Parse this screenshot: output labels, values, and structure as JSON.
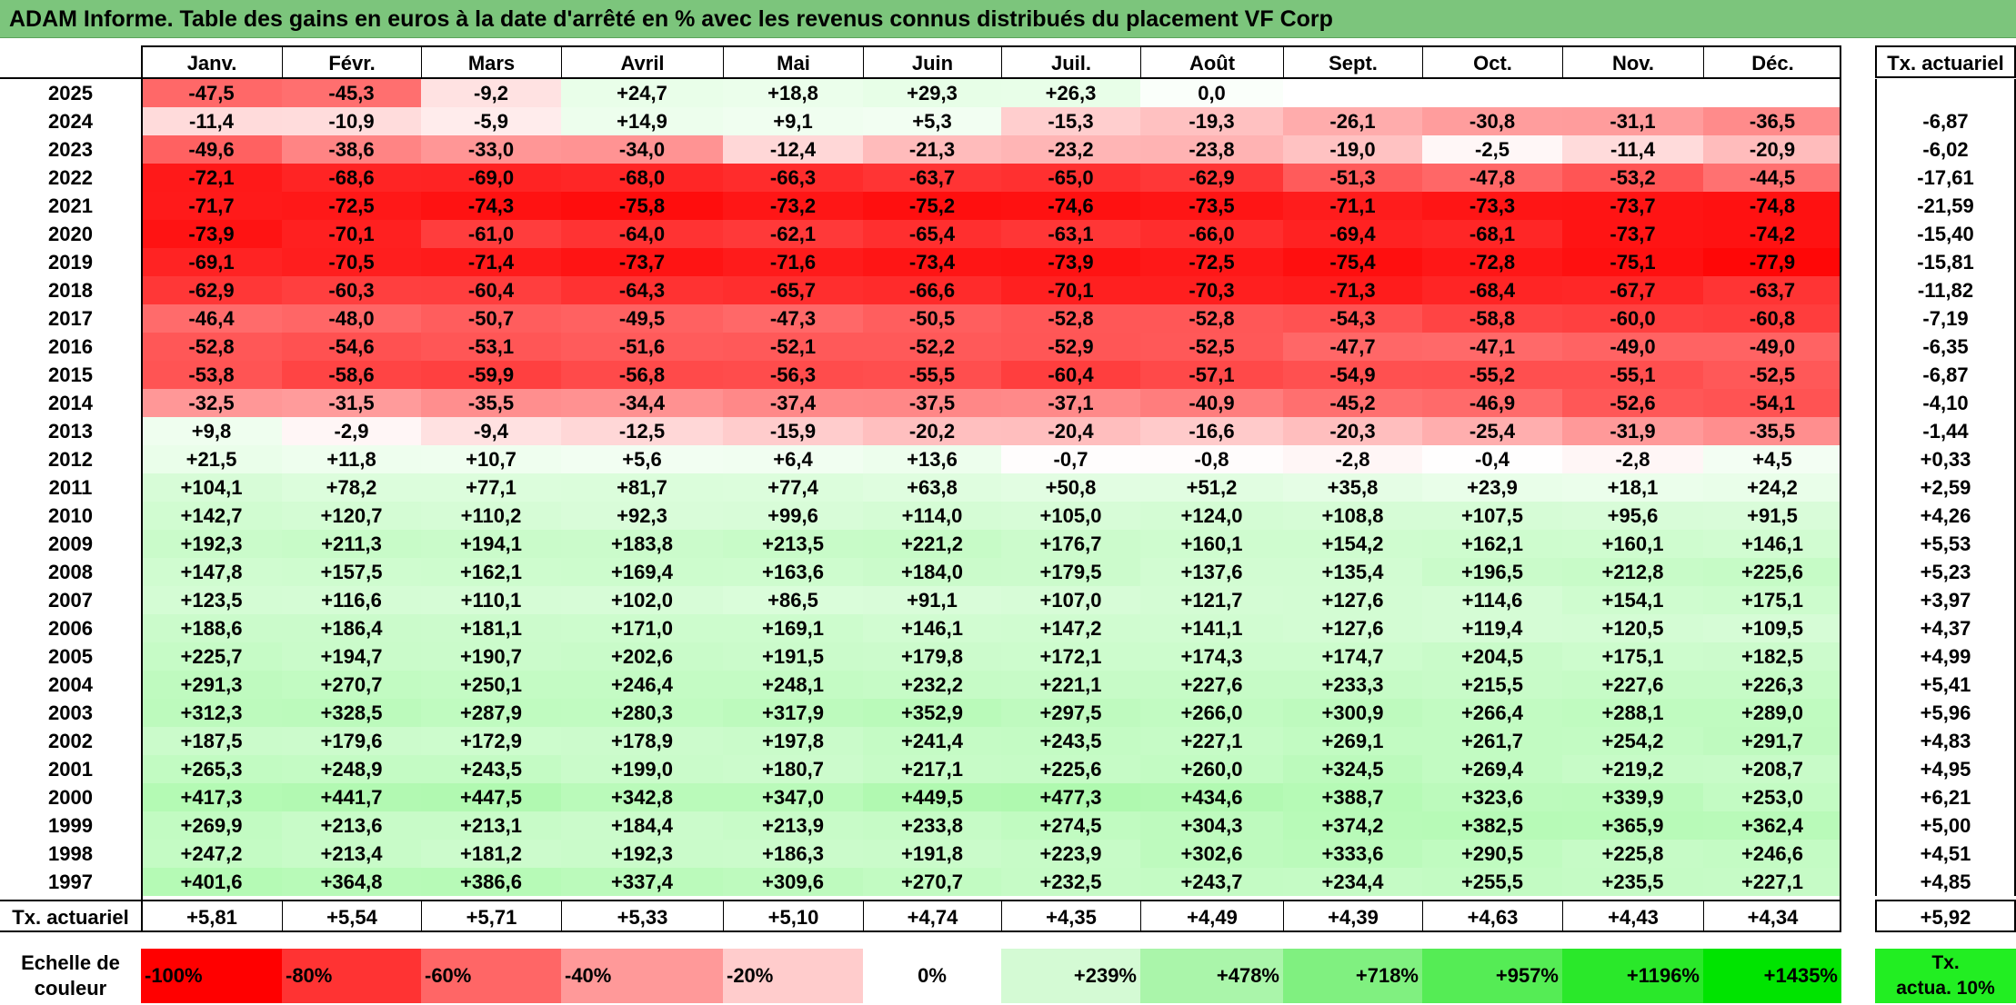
{
  "title": "ADAM Informe. Table des gains en euros à la date d'arrêté en % avec les revenus connus distribués du placement VF Corp",
  "headers": {
    "months": [
      "Janv.",
      "Févr.",
      "Mars",
      "Avril",
      "Mai",
      "Juin",
      "Juil.",
      "Août",
      "Sept.",
      "Oct.",
      "Nov.",
      "Déc."
    ],
    "tx_actuariel": "Tx. actuariel"
  },
  "rows": [
    {
      "year": "2025",
      "values": [
        "-47,5",
        "-45,3",
        "-9,2",
        "+24,7",
        "+18,8",
        "+29,3",
        "+26,3",
        "0,0",
        "",
        "",
        "",
        ""
      ],
      "tx": ""
    },
    {
      "year": "2024",
      "values": [
        "-11,4",
        "-10,9",
        "-5,9",
        "+14,9",
        "+9,1",
        "+5,3",
        "-15,3",
        "-19,3",
        "-26,1",
        "-30,8",
        "-31,1",
        "-36,5"
      ],
      "tx": "-6,87"
    },
    {
      "year": "2023",
      "values": [
        "-49,6",
        "-38,6",
        "-33,0",
        "-34,0",
        "-12,4",
        "-21,3",
        "-23,2",
        "-23,8",
        "-19,0",
        "-2,5",
        "-11,4",
        "-20,9"
      ],
      "tx": "-6,02"
    },
    {
      "year": "2022",
      "values": [
        "-72,1",
        "-68,6",
        "-69,0",
        "-68,0",
        "-66,3",
        "-63,7",
        "-65,0",
        "-62,9",
        "-51,3",
        "-47,8",
        "-53,2",
        "-44,5"
      ],
      "tx": "-17,61"
    },
    {
      "year": "2021",
      "values": [
        "-71,7",
        "-72,5",
        "-74,3",
        "-75,8",
        "-73,2",
        "-75,2",
        "-74,6",
        "-73,5",
        "-71,1",
        "-73,3",
        "-73,7",
        "-74,8"
      ],
      "tx": "-21,59"
    },
    {
      "year": "2020",
      "values": [
        "-73,9",
        "-70,1",
        "-61,0",
        "-64,0",
        "-62,1",
        "-65,4",
        "-63,1",
        "-66,0",
        "-69,4",
        "-68,1",
        "-73,7",
        "-74,2"
      ],
      "tx": "-15,40"
    },
    {
      "year": "2019",
      "values": [
        "-69,1",
        "-70,5",
        "-71,4",
        "-73,7",
        "-71,6",
        "-73,4",
        "-73,9",
        "-72,5",
        "-75,4",
        "-72,8",
        "-75,1",
        "-77,9"
      ],
      "tx": "-15,81"
    },
    {
      "year": "2018",
      "values": [
        "-62,9",
        "-60,3",
        "-60,4",
        "-64,3",
        "-65,7",
        "-66,6",
        "-70,1",
        "-70,3",
        "-71,3",
        "-68,4",
        "-67,7",
        "-63,7"
      ],
      "tx": "-11,82"
    },
    {
      "year": "2017",
      "values": [
        "-46,4",
        "-48,0",
        "-50,7",
        "-49,5",
        "-47,3",
        "-50,5",
        "-52,8",
        "-52,8",
        "-54,3",
        "-58,8",
        "-60,0",
        "-60,8"
      ],
      "tx": "-7,19"
    },
    {
      "year": "2016",
      "values": [
        "-52,8",
        "-54,6",
        "-53,1",
        "-51,6",
        "-52,1",
        "-52,2",
        "-52,9",
        "-52,5",
        "-47,7",
        "-47,1",
        "-49,0",
        "-49,0"
      ],
      "tx": "-6,35"
    },
    {
      "year": "2015",
      "values": [
        "-53,8",
        "-58,6",
        "-59,9",
        "-56,8",
        "-56,3",
        "-55,5",
        "-60,4",
        "-57,1",
        "-54,9",
        "-55,2",
        "-55,1",
        "-52,5"
      ],
      "tx": "-6,87"
    },
    {
      "year": "2014",
      "values": [
        "-32,5",
        "-31,5",
        "-35,5",
        "-34,4",
        "-37,4",
        "-37,5",
        "-37,1",
        "-40,9",
        "-45,2",
        "-46,9",
        "-52,6",
        "-54,1"
      ],
      "tx": "-4,10"
    },
    {
      "year": "2013",
      "values": [
        "+9,8",
        "-2,9",
        "-9,4",
        "-12,5",
        "-15,9",
        "-20,2",
        "-20,4",
        "-16,6",
        "-20,3",
        "-25,4",
        "-31,9",
        "-35,5"
      ],
      "tx": "-1,44"
    },
    {
      "year": "2012",
      "values": [
        "+21,5",
        "+11,8",
        "+10,7",
        "+5,6",
        "+6,4",
        "+13,6",
        "-0,7",
        "-0,8",
        "-2,8",
        "-0,4",
        "-2,8",
        "+4,5"
      ],
      "tx": "+0,33"
    },
    {
      "year": "2011",
      "values": [
        "+104,1",
        "+78,2",
        "+77,1",
        "+81,7",
        "+77,4",
        "+63,8",
        "+50,8",
        "+51,2",
        "+35,8",
        "+23,9",
        "+18,1",
        "+24,2"
      ],
      "tx": "+2,59"
    },
    {
      "year": "2010",
      "values": [
        "+142,7",
        "+120,7",
        "+110,2",
        "+92,3",
        "+99,6",
        "+114,0",
        "+105,0",
        "+124,0",
        "+108,8",
        "+107,5",
        "+95,6",
        "+91,5"
      ],
      "tx": "+4,26"
    },
    {
      "year": "2009",
      "values": [
        "+192,3",
        "+211,3",
        "+194,1",
        "+183,8",
        "+213,5",
        "+221,2",
        "+176,7",
        "+160,1",
        "+154,2",
        "+162,1",
        "+160,1",
        "+146,1"
      ],
      "tx": "+5,53"
    },
    {
      "year": "2008",
      "values": [
        "+147,8",
        "+157,5",
        "+162,1",
        "+169,4",
        "+163,6",
        "+184,0",
        "+179,5",
        "+137,6",
        "+135,4",
        "+196,5",
        "+212,8",
        "+225,6"
      ],
      "tx": "+5,23"
    },
    {
      "year": "2007",
      "values": [
        "+123,5",
        "+116,6",
        "+110,1",
        "+102,0",
        "+86,5",
        "+91,1",
        "+107,0",
        "+121,7",
        "+127,6",
        "+114,6",
        "+154,1",
        "+175,1"
      ],
      "tx": "+3,97"
    },
    {
      "year": "2006",
      "values": [
        "+188,6",
        "+186,4",
        "+181,1",
        "+171,0",
        "+169,1",
        "+146,1",
        "+147,2",
        "+141,1",
        "+127,6",
        "+119,4",
        "+120,5",
        "+109,5"
      ],
      "tx": "+4,37"
    },
    {
      "year": "2005",
      "values": [
        "+225,7",
        "+194,7",
        "+190,7",
        "+202,6",
        "+191,5",
        "+179,8",
        "+172,1",
        "+174,3",
        "+174,7",
        "+204,5",
        "+175,1",
        "+182,5"
      ],
      "tx": "+4,99"
    },
    {
      "year": "2004",
      "values": [
        "+291,3",
        "+270,7",
        "+250,1",
        "+246,4",
        "+248,1",
        "+232,2",
        "+221,1",
        "+227,6",
        "+233,3",
        "+215,5",
        "+227,6",
        "+226,3"
      ],
      "tx": "+5,41"
    },
    {
      "year": "2003",
      "values": [
        "+312,3",
        "+328,5",
        "+287,9",
        "+280,3",
        "+317,9",
        "+352,9",
        "+297,5",
        "+266,0",
        "+300,9",
        "+266,4",
        "+288,1",
        "+289,0"
      ],
      "tx": "+5,96"
    },
    {
      "year": "2002",
      "values": [
        "+187,5",
        "+179,6",
        "+172,9",
        "+178,9",
        "+197,8",
        "+241,4",
        "+243,5",
        "+227,1",
        "+269,1",
        "+261,7",
        "+254,2",
        "+291,7"
      ],
      "tx": "+4,83"
    },
    {
      "year": "2001",
      "values": [
        "+265,3",
        "+248,9",
        "+243,5",
        "+199,0",
        "+180,7",
        "+217,1",
        "+225,6",
        "+260,0",
        "+324,5",
        "+269,4",
        "+219,2",
        "+208,7"
      ],
      "tx": "+4,95"
    },
    {
      "year": "2000",
      "values": [
        "+417,3",
        "+441,7",
        "+447,5",
        "+342,8",
        "+347,0",
        "+449,5",
        "+477,3",
        "+434,6",
        "+388,7",
        "+323,6",
        "+339,9",
        "+253,0"
      ],
      "tx": "+6,21"
    },
    {
      "year": "1999",
      "values": [
        "+269,9",
        "+213,6",
        "+213,1",
        "+184,4",
        "+213,9",
        "+233,8",
        "+274,5",
        "+304,3",
        "+374,2",
        "+382,5",
        "+365,9",
        "+362,4"
      ],
      "tx": "+5,00"
    },
    {
      "year": "1998",
      "values": [
        "+247,2",
        "+213,4",
        "+181,2",
        "+192,3",
        "+186,3",
        "+191,8",
        "+223,9",
        "+302,6",
        "+333,6",
        "+290,5",
        "+225,8",
        "+246,6"
      ],
      "tx": "+4,51"
    },
    {
      "year": "1997",
      "values": [
        "+401,6",
        "+364,8",
        "+386,6",
        "+337,4",
        "+309,6",
        "+270,7",
        "+232,5",
        "+243,7",
        "+234,4",
        "+255,5",
        "+235,5",
        "+227,1"
      ],
      "tx": "+4,85"
    }
  ],
  "footer": {
    "label": "Tx. actuariel",
    "values": [
      "+5,81",
      "+5,54",
      "+5,71",
      "+5,33",
      "+5,10",
      "+4,74",
      "+4,35",
      "+4,49",
      "+4,39",
      "+4,63",
      "+4,43",
      "+4,34"
    ],
    "tx": "+5,92"
  },
  "legend": {
    "label_line1": "Echelle de",
    "label_line2": "couleur",
    "items": [
      {
        "text": "-100%",
        "color": "#ff0000"
      },
      {
        "text": "-80%",
        "color": "#ff3333"
      },
      {
        "text": "-60%",
        "color": "#ff6666"
      },
      {
        "text": "-40%",
        "color": "#ff9999"
      },
      {
        "text": "-20%",
        "color": "#ffcccc"
      },
      {
        "text": "0%",
        "color": "#ffffff"
      },
      {
        "text": "+239%",
        "color": "#d4fad4"
      },
      {
        "text": "+478%",
        "color": "#aaf5aa"
      },
      {
        "text": "+718%",
        "color": "#80f080"
      },
      {
        "text": "+957%",
        "color": "#55ec55"
      },
      {
        "text": "+1196%",
        "color": "#2ae82a"
      },
      {
        "text": "+1435%",
        "color": "#00e400"
      }
    ],
    "tx_line1": "Tx.",
    "tx_line2": "actua. 10%",
    "tx_color": "#22ee22"
  }
}
